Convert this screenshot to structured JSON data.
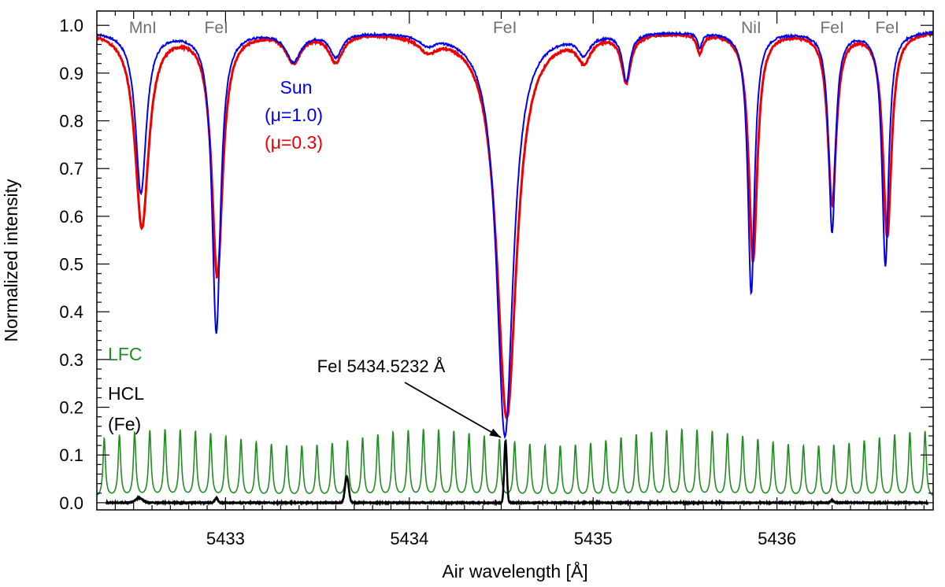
{
  "colors": {
    "sun_mu10": "#0000ee",
    "sun_mu03": "#ee0000",
    "lfc": "#228b22",
    "hcl": "#000000",
    "line_label": "#707070"
  },
  "chart_data": {
    "type": "line",
    "xlabel": "Air wavelength [Å]",
    "ylabel": "Normalized intensity",
    "xlim": [
      5432.3,
      5436.85
    ],
    "ylim": [
      -0.015,
      1.03
    ],
    "x_ticks": [
      5433,
      5434,
      5435,
      5436
    ],
    "x_tick_labels": [
      "5433",
      "5434",
      "5435",
      "5436"
    ],
    "y_ticks": [
      0.0,
      0.1,
      0.2,
      0.3,
      0.4,
      0.5,
      0.6,
      0.7,
      0.8,
      0.9,
      1.0
    ],
    "y_tick_labels": [
      "0.0",
      "0.1",
      "0.2",
      "0.3",
      "0.4",
      "0.5",
      "0.6",
      "0.7",
      "0.8",
      "0.9",
      "1.0"
    ],
    "grid": false,
    "line_labels": [
      {
        "text": "MnI",
        "x": 5432.55
      },
      {
        "text": "FeI",
        "x": 5432.95
      },
      {
        "text": "FeI",
        "x": 5434.52
      },
      {
        "text": "NiI",
        "x": 5435.86
      },
      {
        "text": "FeI",
        "x": 5436.3
      },
      {
        "text": "FeI",
        "x": 5436.6
      }
    ],
    "legend": {
      "sun_title": "Sun",
      "mu10": "(μ=1.0)",
      "mu03": "(μ=0.3)",
      "lfc": "LFC",
      "hcl_line1": "HCL",
      "hcl_line2": "(Fe)"
    },
    "annotation": {
      "text": "FeI 5434.5232 Å",
      "x": 5434.5232,
      "y": 0.13
    },
    "series": [
      {
        "name": "Sun (μ=1.0)",
        "continuum": 0.99,
        "lines": [
          {
            "center": 5432.54,
            "depth": 0.34,
            "width": 0.035
          },
          {
            "center": 5432.95,
            "depth": 0.63,
            "width": 0.028
          },
          {
            "center": 5433.37,
            "depth": 0.06,
            "width": 0.05
          },
          {
            "center": 5433.6,
            "depth": 0.05,
            "width": 0.04
          },
          {
            "center": 5434.1,
            "depth": 0.02,
            "width": 0.05
          },
          {
            "center": 5434.52,
            "depth": 0.85,
            "width": 0.055
          },
          {
            "center": 5434.95,
            "depth": 0.04,
            "width": 0.04
          },
          {
            "center": 5435.18,
            "depth": 0.1,
            "width": 0.025
          },
          {
            "center": 5435.58,
            "depth": 0.03,
            "width": 0.015
          },
          {
            "center": 5435.86,
            "depth": 0.55,
            "width": 0.022
          },
          {
            "center": 5436.3,
            "depth": 0.42,
            "width": 0.022
          },
          {
            "center": 5436.59,
            "depth": 0.49,
            "width": 0.022
          }
        ]
      },
      {
        "name": "Sun (μ=0.3)",
        "continuum": 0.99,
        "lines": [
          {
            "center": 5432.545,
            "depth": 0.41,
            "width": 0.045
          },
          {
            "center": 5432.955,
            "depth": 0.51,
            "width": 0.036
          },
          {
            "center": 5433.37,
            "depth": 0.06,
            "width": 0.05
          },
          {
            "center": 5433.6,
            "depth": 0.06,
            "width": 0.045
          },
          {
            "center": 5434.1,
            "depth": 0.03,
            "width": 0.06
          },
          {
            "center": 5434.53,
            "depth": 0.81,
            "width": 0.065
          },
          {
            "center": 5434.95,
            "depth": 0.05,
            "width": 0.045
          },
          {
            "center": 5435.18,
            "depth": 0.1,
            "width": 0.03
          },
          {
            "center": 5435.58,
            "depth": 0.04,
            "width": 0.02
          },
          {
            "center": 5435.87,
            "depth": 0.48,
            "width": 0.028
          },
          {
            "center": 5436.3,
            "depth": 0.36,
            "width": 0.028
          },
          {
            "center": 5436.6,
            "depth": 0.43,
            "width": 0.028
          }
        ]
      },
      {
        "name": "LFC",
        "baseline": 0.01,
        "peak_height": 0.14,
        "start": 5432.34,
        "spacing": 0.0827,
        "count": 55,
        "peak_width": 0.008
      },
      {
        "name": "HCL (Fe)",
        "baseline": 0.0,
        "peaks": [
          {
            "center": 5432.53,
            "height": 0.01,
            "width": 0.02
          },
          {
            "center": 5432.95,
            "height": 0.01,
            "width": 0.008
          },
          {
            "center": 5433.66,
            "height": 0.055,
            "width": 0.01
          },
          {
            "center": 5434.5232,
            "height": 0.13,
            "width": 0.007
          },
          {
            "center": 5436.3,
            "height": 0.005,
            "width": 0.008
          }
        ]
      }
    ]
  }
}
